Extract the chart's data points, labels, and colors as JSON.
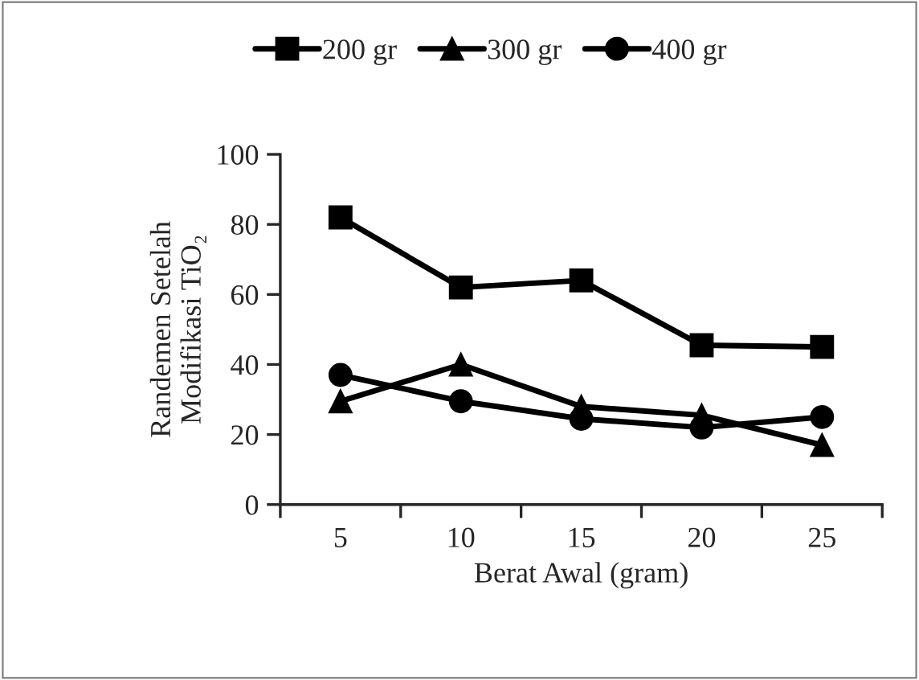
{
  "chart_data": {
    "type": "line",
    "xlabel": "Berat Awal (gram)",
    "ylabel": "Randemen Setelah\nModifikasi TiO₂",
    "categories": [
      "5",
      "10",
      "15",
      "20",
      "25"
    ],
    "series": [
      {
        "name": "200 gr",
        "color": "#000000",
        "marker": "square",
        "values": [
          82,
          62,
          64,
          45.5,
          45
        ]
      },
      {
        "name": "300 gr",
        "color": "#000000",
        "marker": "triangle",
        "values": [
          29.5,
          40,
          28,
          25.5,
          17
        ]
      },
      {
        "name": "400 gr",
        "color": "#000000",
        "marker": "circle",
        "values": [
          37,
          29.5,
          24.5,
          22,
          25
        ]
      }
    ],
    "ylim": [
      0,
      100
    ],
    "yticks": [
      0,
      20,
      40,
      60,
      80,
      100
    ],
    "grid": false,
    "legend": "top",
    "line_style": "solid"
  }
}
